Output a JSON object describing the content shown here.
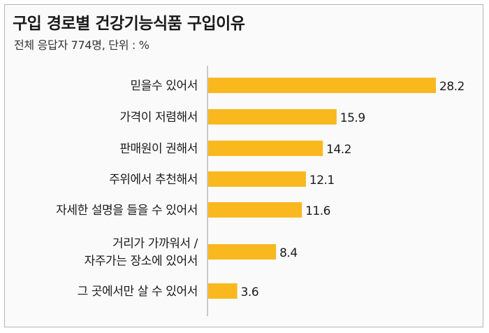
{
  "chart_data": {
    "type": "bar",
    "orientation": "horizontal",
    "title": "구입 경로별 건강기능식품 구입이유",
    "subtitle": "전체 응답자 774명, 단위 : %",
    "categories": [
      [
        "믿을수 있어서"
      ],
      [
        "가격이 저렴해서"
      ],
      [
        "판매원이 권해서"
      ],
      [
        "주위에서 추천해서"
      ],
      [
        "자세한 설명을 들을 수 있어서"
      ],
      [
        "거리가 가까워서 /",
        "자주가는 장소에 있어서"
      ],
      [
        "그 곳에서만 살 수 있어서"
      ]
    ],
    "values": [
      28.2,
      15.9,
      14.2,
      12.1,
      11.6,
      8.4,
      3.6
    ],
    "value_labels": [
      "28.2",
      "15.9",
      "14.2",
      "12.1",
      "11.6",
      "8.4",
      "3.6"
    ],
    "bar_color": "#f8b81e",
    "xlim": [
      0,
      28.2
    ],
    "grid": false,
    "legend": "none"
  }
}
